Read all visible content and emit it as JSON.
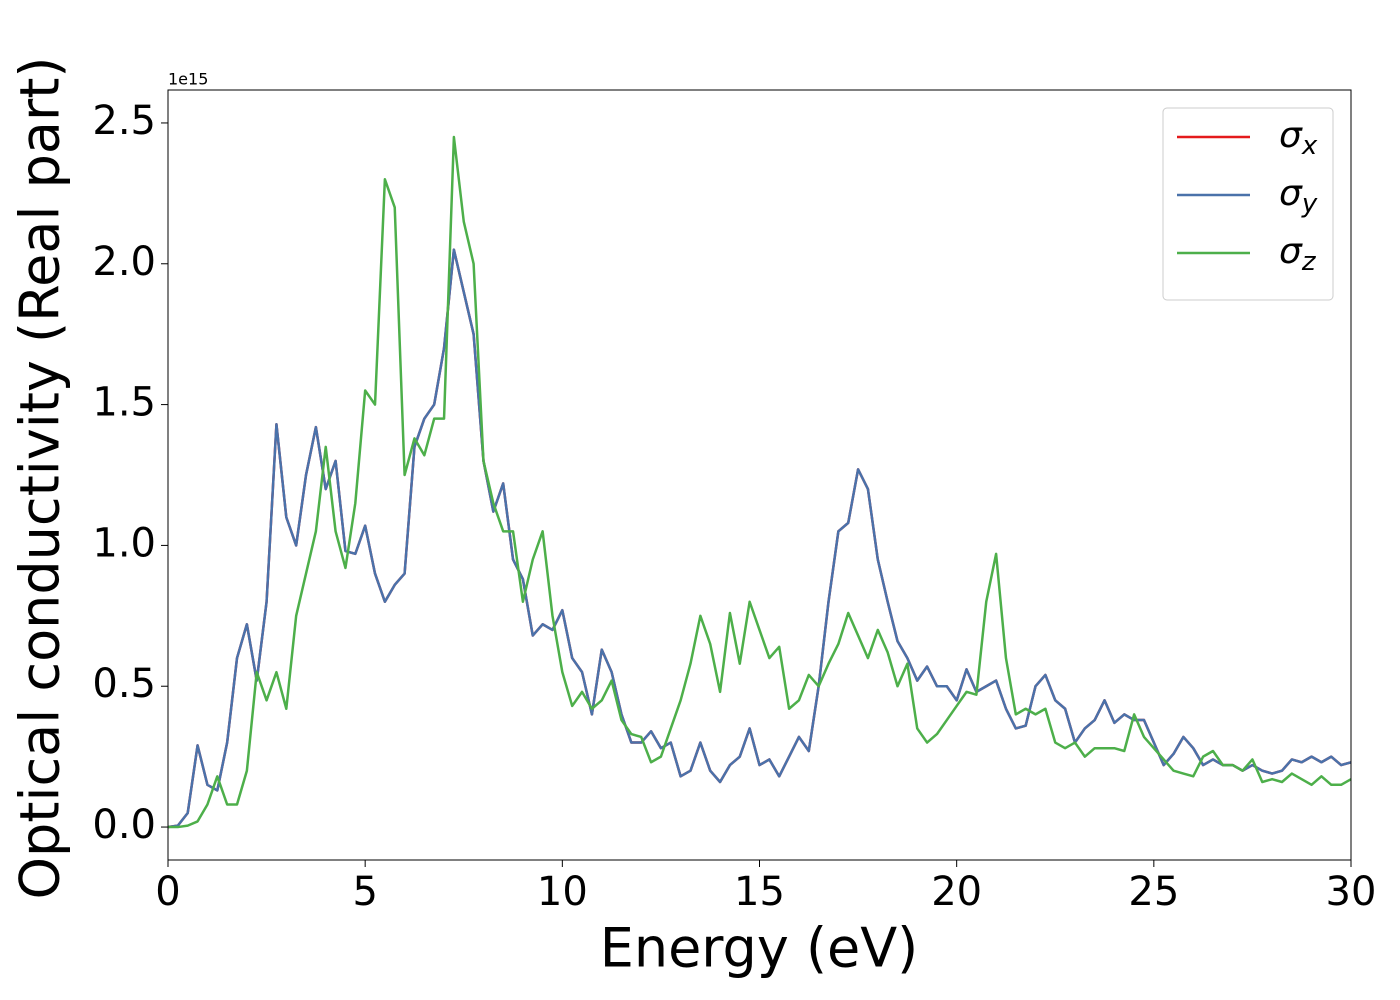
{
  "chart_data": {
    "type": "line",
    "xlabel": "Energy (eV)",
    "ylabel": "Optical conductivity (Real part)",
    "y_offset_label": "1e15",
    "x": [
      0,
      0.25,
      0.5,
      0.75,
      1,
      1.25,
      1.5,
      1.75,
      2,
      2.25,
      2.5,
      2.75,
      3,
      3.25,
      3.5,
      3.75,
      4,
      4.25,
      4.5,
      4.75,
      5,
      5.25,
      5.5,
      5.75,
      6,
      6.25,
      6.5,
      6.75,
      7,
      7.25,
      7.5,
      7.75,
      8,
      8.25,
      8.5,
      8.75,
      9,
      9.25,
      9.5,
      9.75,
      10,
      10.25,
      10.5,
      10.75,
      11,
      11.25,
      11.5,
      11.75,
      12,
      12.25,
      12.5,
      12.75,
      13,
      13.25,
      13.5,
      13.75,
      14,
      14.25,
      14.5,
      14.75,
      15,
      15.25,
      15.5,
      15.75,
      16,
      16.25,
      16.5,
      16.75,
      17,
      17.25,
      17.5,
      17.75,
      18,
      18.25,
      18.5,
      18.75,
      19,
      19.25,
      19.5,
      19.75,
      20,
      20.25,
      20.5,
      20.75,
      21,
      21.25,
      21.5,
      21.75,
      22,
      22.25,
      22.5,
      22.75,
      23,
      23.25,
      23.5,
      23.75,
      24,
      24.25,
      24.5,
      24.75,
      25,
      25.25,
      25.5,
      25.75,
      26,
      26.25,
      26.5,
      26.75,
      27,
      27.25,
      27.5,
      27.75,
      28,
      28.25,
      28.5,
      28.75,
      29,
      29.25,
      29.5,
      29.75,
      30
    ],
    "series": [
      {
        "name": "σx",
        "color": "#e41a1c",
        "values": [
          0,
          0.005,
          0.05,
          0.29,
          0.15,
          0.13,
          0.3,
          0.6,
          0.72,
          0.52,
          0.8,
          1.43,
          1.1,
          1.0,
          1.25,
          1.42,
          1.2,
          1.3,
          0.98,
          0.97,
          1.07,
          0.9,
          0.8,
          0.86,
          0.9,
          1.35,
          1.45,
          1.5,
          1.7,
          2.05,
          1.9,
          1.75,
          1.3,
          1.12,
          1.22,
          0.95,
          0.88,
          0.68,
          0.72,
          0.7,
          0.77,
          0.6,
          0.55,
          0.4,
          0.63,
          0.55,
          0.4,
          0.3,
          0.3,
          0.34,
          0.28,
          0.3,
          0.18,
          0.2,
          0.3,
          0.2,
          0.16,
          0.22,
          0.25,
          0.35,
          0.22,
          0.24,
          0.18,
          0.25,
          0.32,
          0.27,
          0.5,
          0.8,
          1.05,
          1.08,
          1.27,
          1.2,
          0.95,
          0.8,
          0.66,
          0.6,
          0.52,
          0.57,
          0.5,
          0.5,
          0.45,
          0.56,
          0.48,
          0.5,
          0.52,
          0.42,
          0.35,
          0.36,
          0.5,
          0.54,
          0.45,
          0.42,
          0.3,
          0.35,
          0.38,
          0.45,
          0.37,
          0.4,
          0.38,
          0.38,
          0.3,
          0.22,
          0.26,
          0.32,
          0.28,
          0.22,
          0.24,
          0.22,
          0.22,
          0.2,
          0.22,
          0.2,
          0.19,
          0.2,
          0.24,
          0.23,
          0.25,
          0.23,
          0.25,
          0.22,
          0.23
        ]
      },
      {
        "name": "σy",
        "color": "#4a72aa",
        "values": [
          0,
          0.005,
          0.05,
          0.29,
          0.15,
          0.13,
          0.3,
          0.6,
          0.72,
          0.52,
          0.8,
          1.43,
          1.1,
          1.0,
          1.25,
          1.42,
          1.2,
          1.3,
          0.98,
          0.97,
          1.07,
          0.9,
          0.8,
          0.86,
          0.9,
          1.35,
          1.45,
          1.5,
          1.7,
          2.05,
          1.9,
          1.75,
          1.3,
          1.12,
          1.22,
          0.95,
          0.88,
          0.68,
          0.72,
          0.7,
          0.77,
          0.6,
          0.55,
          0.4,
          0.63,
          0.55,
          0.4,
          0.3,
          0.3,
          0.34,
          0.28,
          0.3,
          0.18,
          0.2,
          0.3,
          0.2,
          0.16,
          0.22,
          0.25,
          0.35,
          0.22,
          0.24,
          0.18,
          0.25,
          0.32,
          0.27,
          0.5,
          0.8,
          1.05,
          1.08,
          1.27,
          1.2,
          0.95,
          0.8,
          0.66,
          0.6,
          0.52,
          0.57,
          0.5,
          0.5,
          0.45,
          0.56,
          0.48,
          0.5,
          0.52,
          0.42,
          0.35,
          0.36,
          0.5,
          0.54,
          0.45,
          0.42,
          0.3,
          0.35,
          0.38,
          0.45,
          0.37,
          0.4,
          0.38,
          0.38,
          0.3,
          0.22,
          0.26,
          0.32,
          0.28,
          0.22,
          0.24,
          0.22,
          0.22,
          0.2,
          0.22,
          0.2,
          0.19,
          0.2,
          0.24,
          0.23,
          0.25,
          0.23,
          0.25,
          0.22,
          0.23
        ]
      },
      {
        "name": "σz",
        "color": "#4daf4a",
        "values": [
          0,
          0,
          0.005,
          0.02,
          0.08,
          0.18,
          0.08,
          0.08,
          0.2,
          0.55,
          0.45,
          0.55,
          0.42,
          0.75,
          0.9,
          1.05,
          1.35,
          1.05,
          0.92,
          1.15,
          1.55,
          1.5,
          2.3,
          2.2,
          1.25,
          1.38,
          1.32,
          1.45,
          1.45,
          2.45,
          2.15,
          2.0,
          1.3,
          1.15,
          1.05,
          1.05,
          0.8,
          0.95,
          1.05,
          0.75,
          0.55,
          0.43,
          0.48,
          0.42,
          0.45,
          0.52,
          0.38,
          0.33,
          0.32,
          0.23,
          0.25,
          0.35,
          0.45,
          0.58,
          0.75,
          0.65,
          0.48,
          0.76,
          0.58,
          0.8,
          0.7,
          0.6,
          0.64,
          0.42,
          0.45,
          0.54,
          0.5,
          0.58,
          0.65,
          0.76,
          0.68,
          0.6,
          0.7,
          0.62,
          0.5,
          0.58,
          0.35,
          0.3,
          0.33,
          0.38,
          0.43,
          0.48,
          0.47,
          0.8,
          0.97,
          0.6,
          0.4,
          0.42,
          0.4,
          0.42,
          0.3,
          0.28,
          0.3,
          0.25,
          0.28,
          0.28,
          0.28,
          0.27,
          0.4,
          0.32,
          0.28,
          0.24,
          0.2,
          0.19,
          0.18,
          0.25,
          0.27,
          0.22,
          0.22,
          0.2,
          0.24,
          0.16,
          0.17,
          0.16,
          0.19,
          0.17,
          0.15,
          0.18,
          0.15,
          0.15,
          0.17
        ]
      }
    ],
    "xlim": [
      0,
      30
    ],
    "xticks": [
      0,
      5,
      10,
      15,
      20,
      25,
      30
    ],
    "ylim": [
      -0.117,
      2.617
    ],
    "yticks": [
      {
        "value": 0,
        "label": "0.0"
      },
      0.5,
      {
        "value": 1,
        "label": "1.0"
      },
      1.5,
      {
        "value": 2,
        "label": "2.0"
      },
      2.5
    ],
    "grid": false,
    "legend": "upper right"
  }
}
